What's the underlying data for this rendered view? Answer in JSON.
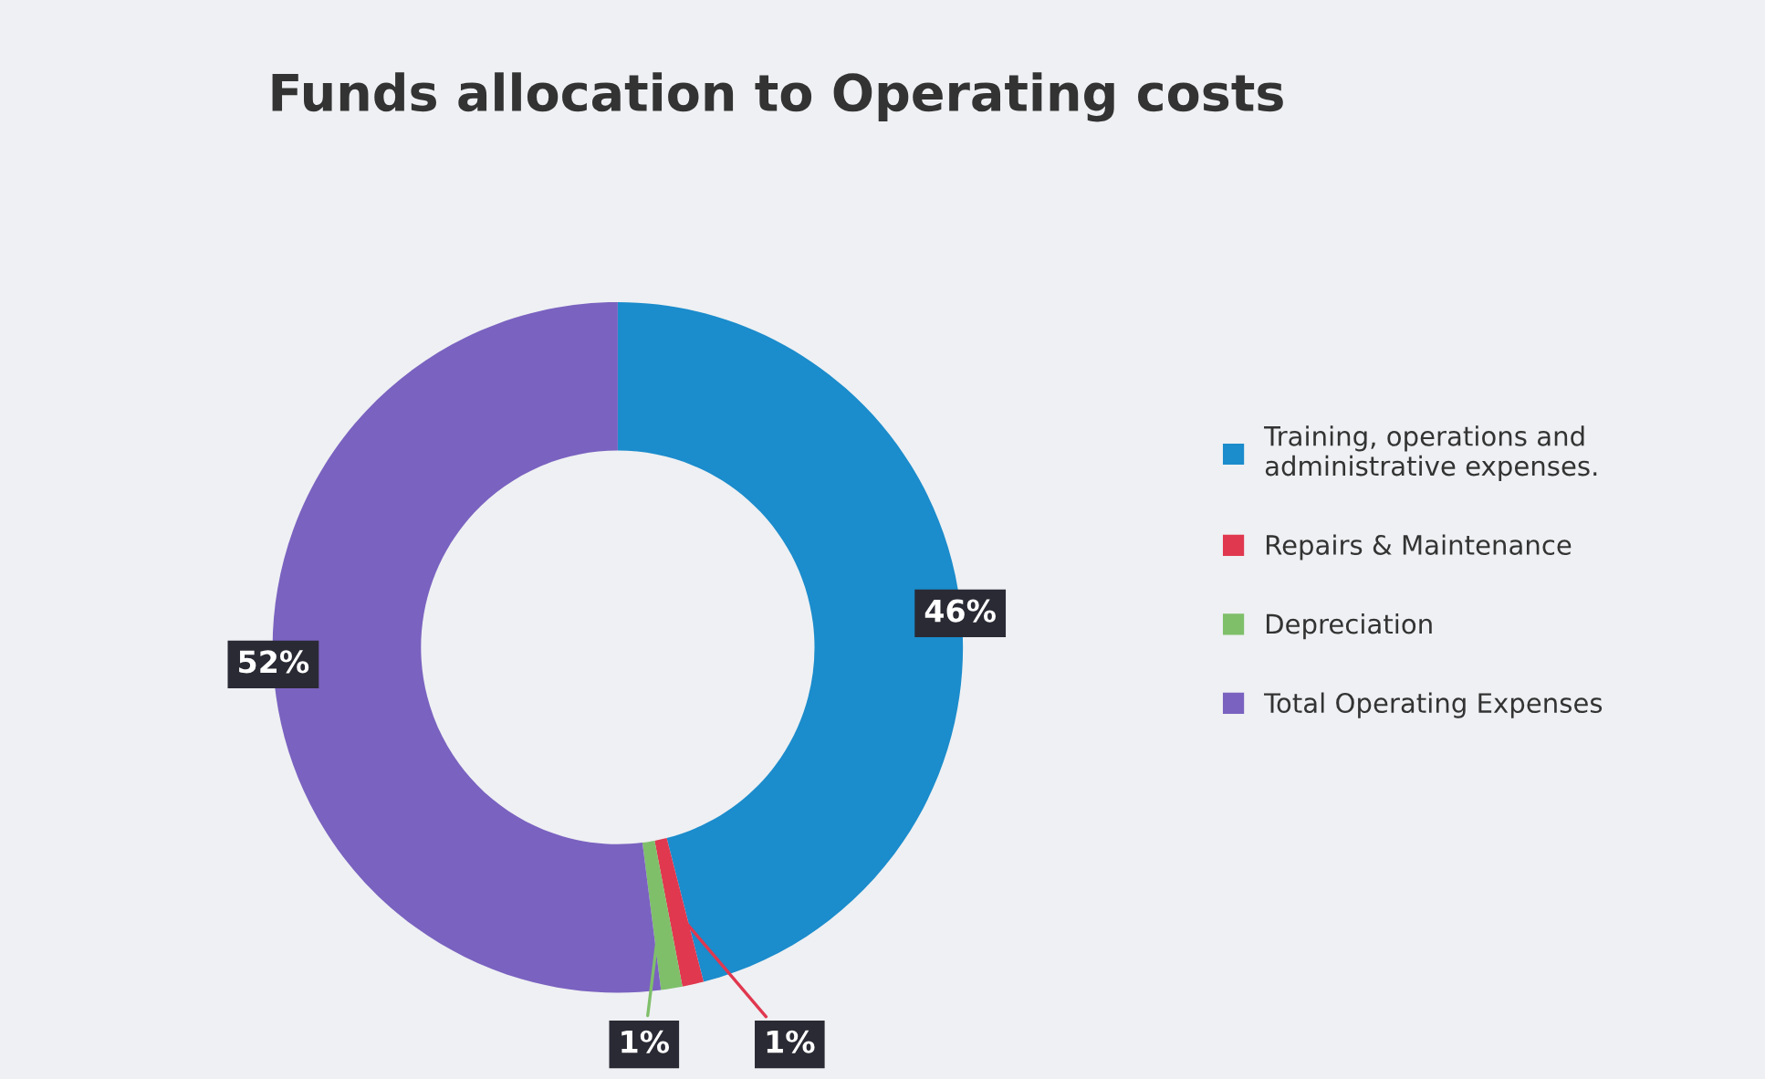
{
  "chart_data": {
    "type": "donut",
    "title": "Funds allocation to Operating costs",
    "categories": [
      "Training, operations and\nadministrative expenses.",
      "Repairs & Maintenance",
      "Depreciation",
      "Total Operating Expenses"
    ],
    "values": [
      46,
      1,
      1,
      52
    ],
    "colors": [
      "#1b8ccc",
      "#e0384f",
      "#7fbf6a",
      "#7a62c0"
    ],
    "value_labels": [
      "46%",
      "1%",
      "1%",
      "52%"
    ],
    "legend": "right"
  }
}
